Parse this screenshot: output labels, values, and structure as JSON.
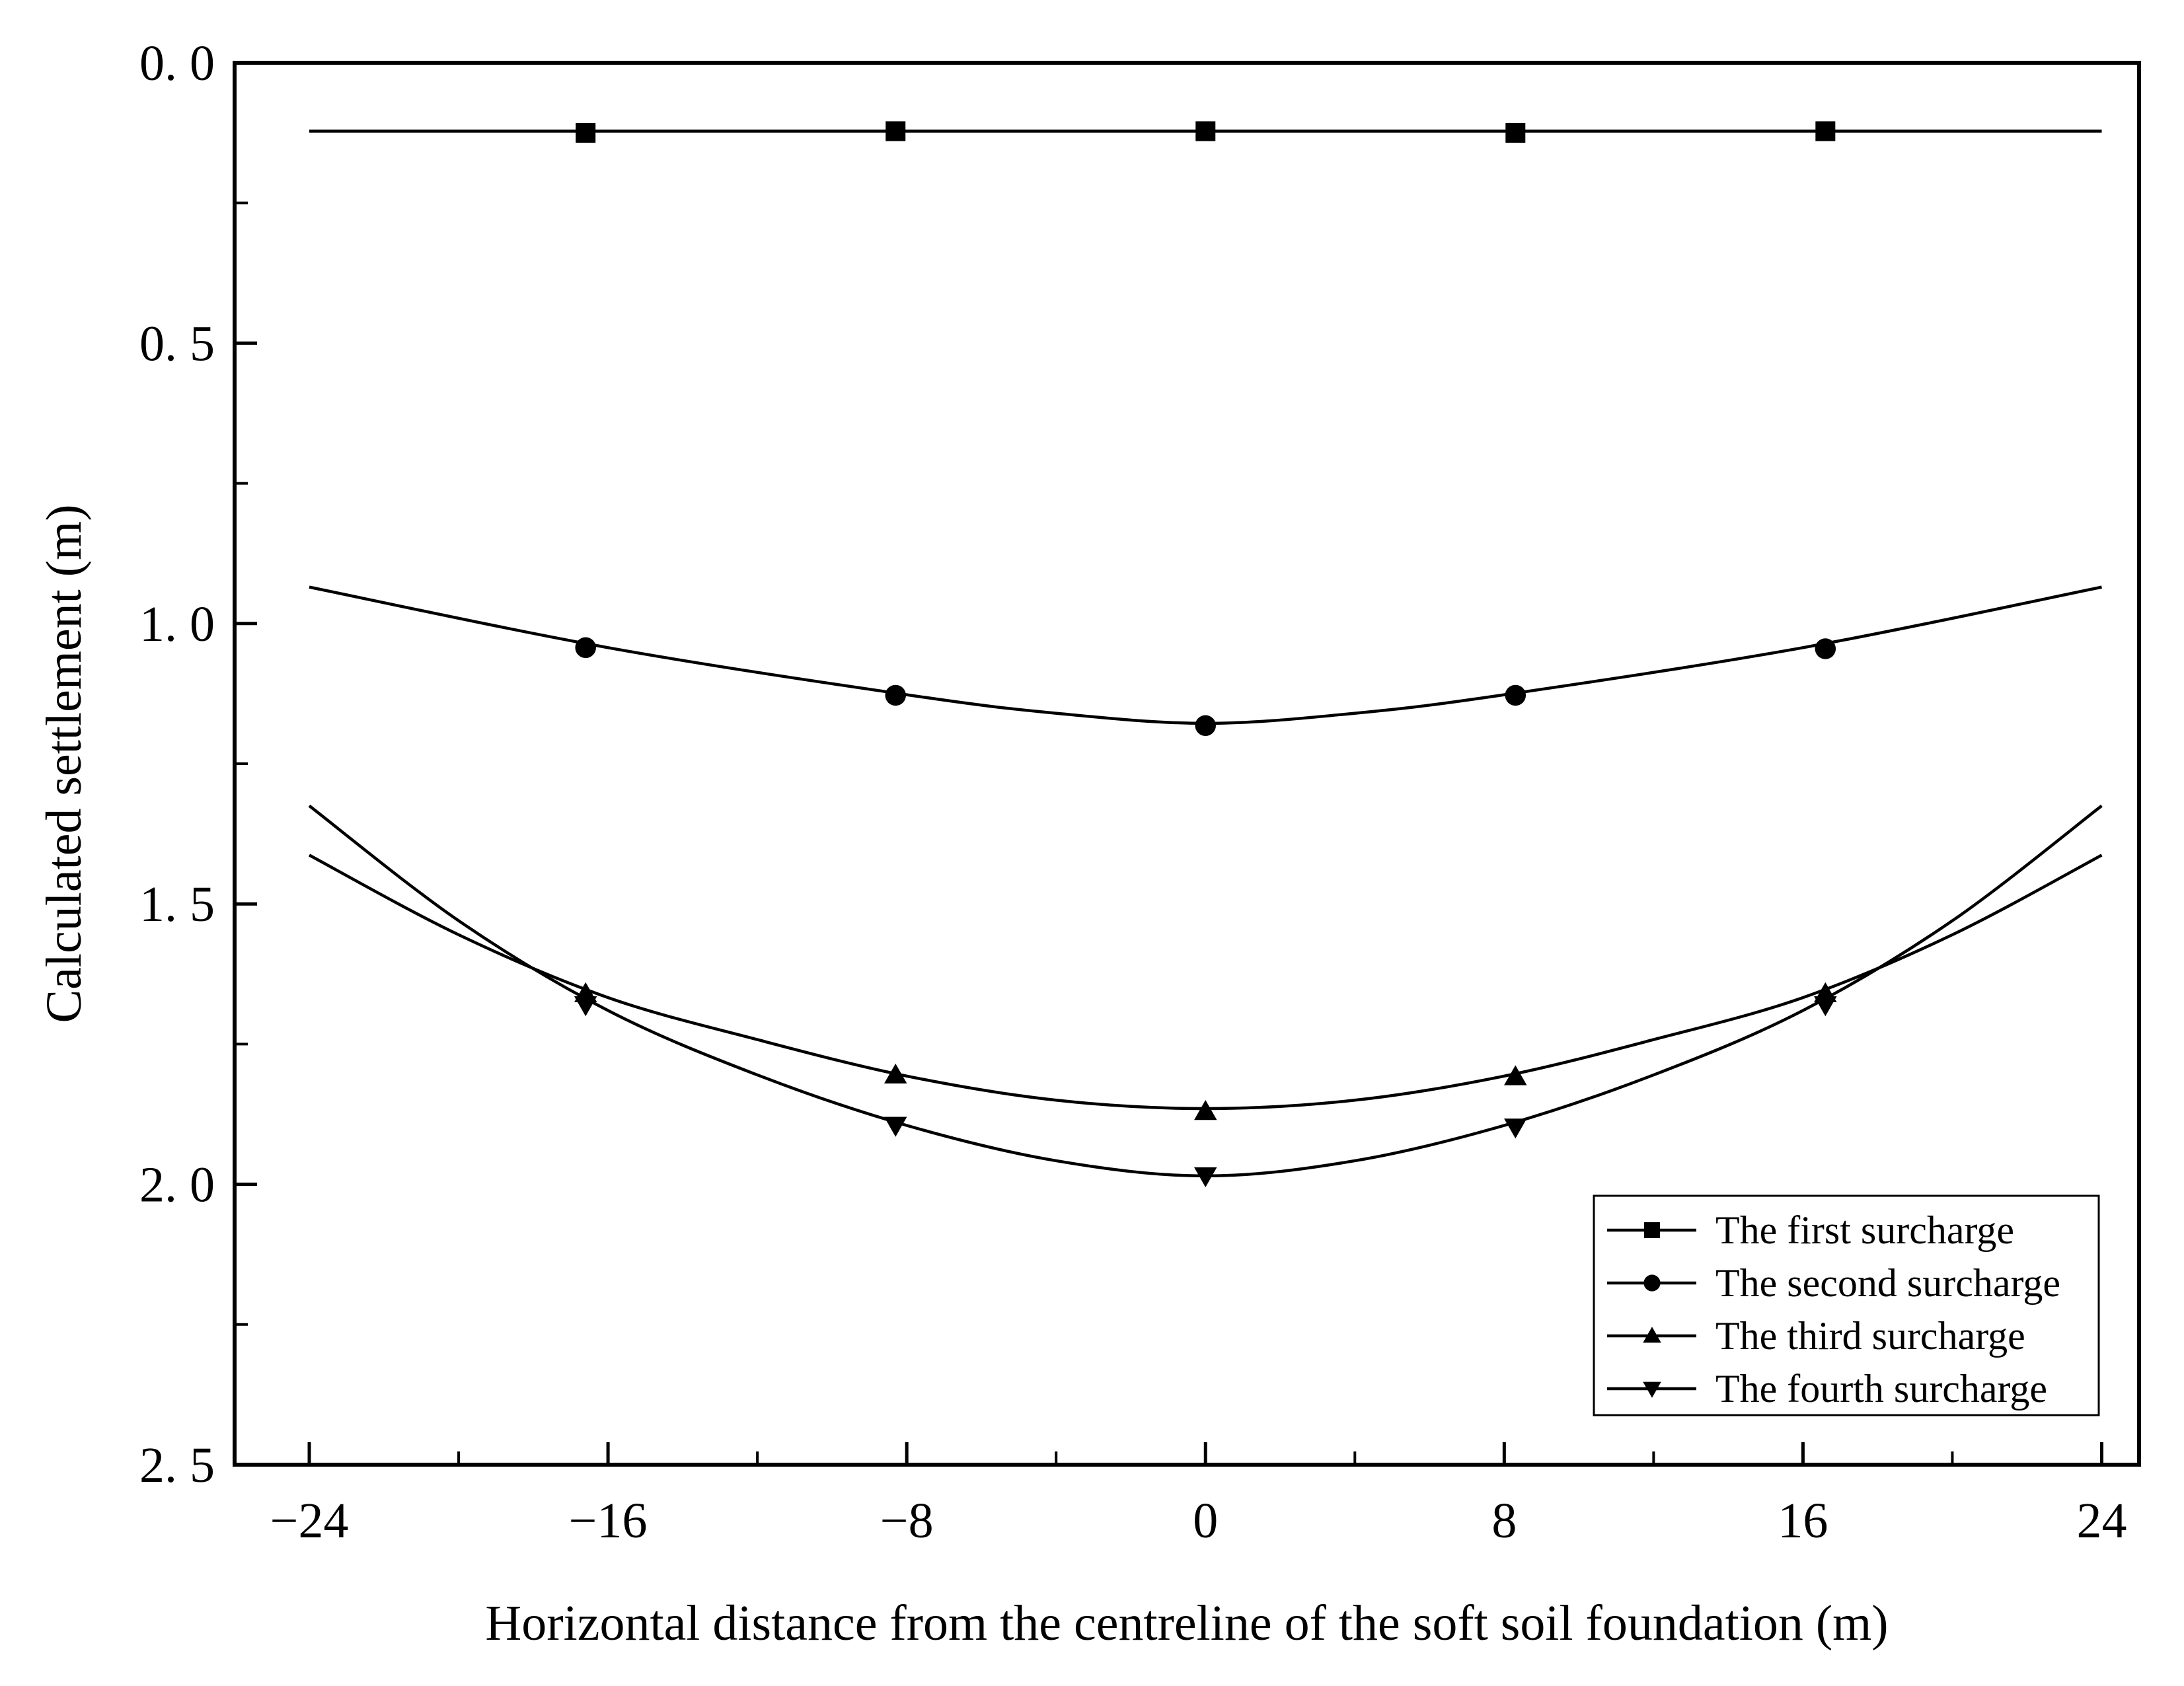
{
  "chart_data": {
    "type": "line",
    "title": "",
    "xlabel": "Horizontal distance from the centreline of the soft soil foundation (m)",
    "ylabel": "Calculated settlement (m)",
    "xlim": [
      -26,
      25
    ],
    "ylim": [
      0.0,
      2.5
    ],
    "y_inverted": true,
    "xticks": [
      -24,
      -16,
      -8,
      0,
      8,
      16,
      24
    ],
    "xtick_labels": [
      "−24",
      "−16",
      "−8",
      "0",
      "8",
      "16",
      "24"
    ],
    "yticks": [
      0.0,
      0.5,
      1.0,
      1.5,
      2.0,
      2.5
    ],
    "ytick_labels": [
      "0. 0",
      "0. 5",
      "1. 0",
      "1. 5",
      "2. 0",
      "2. 5"
    ],
    "grid": false,
    "legend_position": "bottom-right",
    "series": [
      {
        "name": "The first surcharge",
        "marker": "square",
        "x": [
          -16.6,
          -8.3,
          0,
          8.3,
          16.6
        ],
        "y": [
          0.125,
          0.122,
          0.122,
          0.125,
          0.122
        ],
        "curve_x": [
          -24,
          24
        ],
        "curve_y": [
          0.122,
          0.122
        ]
      },
      {
        "name": "The second surcharge",
        "marker": "circle",
        "x": [
          -16.6,
          -8.3,
          0,
          8.3,
          16.6
        ],
        "y": [
          1.043,
          1.128,
          1.182,
          1.128,
          1.045
        ],
        "curve_x": [
          -24,
          -16,
          -8,
          -4,
          0,
          4,
          8,
          16,
          24
        ],
        "curve_y": [
          0.935,
          1.043,
          1.127,
          1.16,
          1.178,
          1.16,
          1.127,
          1.043,
          0.935
        ]
      },
      {
        "name": "The third surcharge",
        "marker": "triangle-up",
        "x": [
          -16.6,
          -8.3,
          0,
          8.3,
          16.6
        ],
        "y": [
          1.66,
          1.805,
          1.87,
          1.808,
          1.66
        ],
        "curve_x": [
          -24,
          -20,
          -16,
          -12,
          -8,
          -4,
          0,
          4,
          8,
          12,
          16,
          20,
          24
        ],
        "curve_y": [
          1.413,
          1.555,
          1.667,
          1.742,
          1.807,
          1.85,
          1.865,
          1.85,
          1.807,
          1.742,
          1.667,
          1.555,
          1.413
        ]
      },
      {
        "name": "The fourth surcharge",
        "marker": "triangle-down",
        "x": [
          -16.6,
          -8.3,
          0,
          8.3,
          16.6
        ],
        "y": [
          1.68,
          1.895,
          1.985,
          1.898,
          1.68
        ],
        "curve_x": [
          -24,
          -20,
          -16,
          -12,
          -8,
          -4,
          0,
          4,
          8,
          12,
          16,
          20,
          24
        ],
        "curve_y": [
          1.325,
          1.53,
          1.69,
          1.805,
          1.895,
          1.958,
          1.985,
          1.958,
          1.895,
          1.805,
          1.69,
          1.53,
          1.325
        ]
      }
    ]
  }
}
